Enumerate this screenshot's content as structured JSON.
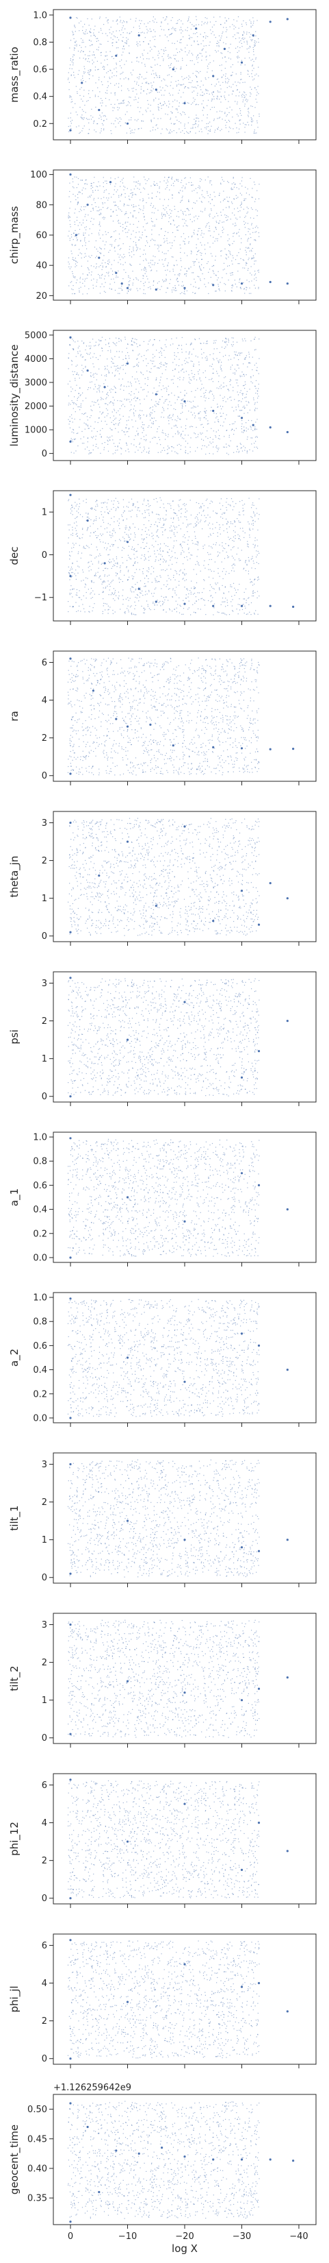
{
  "chart_data": [
    {
      "type": "scatter",
      "ylabel": "mass_ratio",
      "ylim": [
        0.08,
        1.04
      ],
      "yticks": [
        0.2,
        0.4,
        0.6,
        0.8,
        1.0
      ],
      "ytick_labels": [
        "0.2",
        "0.4",
        "0.6",
        "0.8",
        "1.0"
      ],
      "points": [
        [
          0,
          0.15
        ],
        [
          0,
          0.98
        ],
        [
          -2,
          0.5
        ],
        [
          -5,
          0.3
        ],
        [
          -8,
          0.7
        ],
        [
          -10,
          0.2
        ],
        [
          -12,
          0.85
        ],
        [
          -15,
          0.45
        ],
        [
          -18,
          0.6
        ],
        [
          -20,
          0.35
        ],
        [
          -22,
          0.9
        ],
        [
          -25,
          0.55
        ],
        [
          -27,
          0.75
        ],
        [
          -30,
          0.65
        ],
        [
          -32,
          0.85
        ],
        [
          -35,
          0.95
        ],
        [
          -38,
          0.97
        ]
      ]
    },
    {
      "type": "scatter",
      "ylabel": "chirp_mass",
      "ylim": [
        17,
        103
      ],
      "yticks": [
        20,
        40,
        60,
        80,
        100
      ],
      "ytick_labels": [
        "20",
        "40",
        "60",
        "80",
        "100"
      ],
      "points": [
        [
          0,
          100
        ],
        [
          -1,
          60
        ],
        [
          -3,
          80
        ],
        [
          -5,
          45
        ],
        [
          -7,
          95
        ],
        [
          -8,
          35
        ],
        [
          -9,
          28
        ],
        [
          -10,
          25
        ],
        [
          -15,
          24
        ],
        [
          -20,
          25
        ],
        [
          -25,
          27
        ],
        [
          -30,
          28
        ],
        [
          -35,
          29
        ],
        [
          -38,
          28
        ]
      ]
    },
    {
      "type": "scatter",
      "ylabel": "luminosity_distance",
      "ylim": [
        -300,
        5200
      ],
      "yticks": [
        0,
        1000,
        2000,
        3000,
        4000,
        5000
      ],
      "ytick_labels": [
        "0",
        "1000",
        "2000",
        "3000",
        "4000",
        "5000"
      ],
      "points": [
        [
          0,
          4900
        ],
        [
          0,
          500
        ],
        [
          -3,
          3500
        ],
        [
          -6,
          2800
        ],
        [
          -10,
          3800
        ],
        [
          -15,
          2500
        ],
        [
          -20,
          2200
        ],
        [
          -25,
          1800
        ],
        [
          -30,
          1500
        ],
        [
          -32,
          1200
        ],
        [
          -35,
          1100
        ],
        [
          -38,
          900
        ]
      ]
    },
    {
      "type": "scatter",
      "ylabel": "dec",
      "ylim": [
        -1.55,
        1.5
      ],
      "yticks": [
        -1,
        0,
        1
      ],
      "ytick_labels": [
        "−1",
        "0",
        "1"
      ],
      "points": [
        [
          0,
          1.4
        ],
        [
          0,
          -0.5
        ],
        [
          -3,
          0.8
        ],
        [
          -6,
          -0.2
        ],
        [
          -10,
          0.3
        ],
        [
          -12,
          -0.8
        ],
        [
          -15,
          -1.1
        ],
        [
          -20,
          -1.15
        ],
        [
          -25,
          -1.2
        ],
        [
          -30,
          -1.2
        ],
        [
          -35,
          -1.2
        ],
        [
          -39,
          -1.22
        ]
      ]
    },
    {
      "type": "scatter",
      "ylabel": "ra",
      "ylim": [
        -0.3,
        6.6
      ],
      "yticks": [
        0,
        2,
        4,
        6
      ],
      "ytick_labels": [
        "0",
        "2",
        "4",
        "6"
      ],
      "points": [
        [
          0,
          6.2
        ],
        [
          0,
          0.1
        ],
        [
          -4,
          4.5
        ],
        [
          -8,
          3.0
        ],
        [
          -10,
          2.6
        ],
        [
          -14,
          2.7
        ],
        [
          -18,
          1.6
        ],
        [
          -25,
          1.5
        ],
        [
          -30,
          1.45
        ],
        [
          -35,
          1.4
        ],
        [
          -39,
          1.42
        ]
      ]
    },
    {
      "type": "scatter",
      "ylabel": "theta_jn",
      "ylim": [
        -0.15,
        3.3
      ],
      "yticks": [
        0,
        1,
        2,
        3
      ],
      "ytick_labels": [
        "0",
        "1",
        "2",
        "3"
      ],
      "points": [
        [
          0,
          3.0
        ],
        [
          0,
          0.1
        ],
        [
          -5,
          1.6
        ],
        [
          -10,
          2.5
        ],
        [
          -15,
          0.8
        ],
        [
          -20,
          2.9
        ],
        [
          -25,
          0.4
        ],
        [
          -30,
          1.2
        ],
        [
          -33,
          0.3
        ],
        [
          -35,
          1.4
        ],
        [
          -38,
          1.0
        ]
      ]
    },
    {
      "type": "scatter",
      "ylabel": "psi",
      "ylim": [
        -0.15,
        3.3
      ],
      "yticks": [
        0,
        1,
        2,
        3
      ],
      "ytick_labels": [
        "0",
        "1",
        "2",
        "3"
      ],
      "points": [
        [
          0,
          0.0
        ],
        [
          0,
          3.14
        ],
        [
          -10,
          1.5
        ],
        [
          -20,
          2.5
        ],
        [
          -30,
          0.5
        ],
        [
          -33,
          1.2
        ],
        [
          -38,
          2.0
        ]
      ]
    },
    {
      "type": "scatter",
      "ylabel": "a_1",
      "ylim": [
        -0.04,
        1.04
      ],
      "yticks": [
        0.0,
        0.2,
        0.4,
        0.6,
        0.8,
        1.0
      ],
      "ytick_labels": [
        "0.0",
        "0.2",
        "0.4",
        "0.6",
        "0.8",
        "1.0"
      ],
      "points": [
        [
          0,
          0.0
        ],
        [
          0,
          0.99
        ],
        [
          -10,
          0.5
        ],
        [
          -20,
          0.3
        ],
        [
          -30,
          0.7
        ],
        [
          -33,
          0.6
        ],
        [
          -38,
          0.4
        ]
      ]
    },
    {
      "type": "scatter",
      "ylabel": "a_2",
      "ylim": [
        -0.04,
        1.04
      ],
      "yticks": [
        0.0,
        0.2,
        0.4,
        0.6,
        0.8,
        1.0
      ],
      "ytick_labels": [
        "0.0",
        "0.2",
        "0.4",
        "0.6",
        "0.8",
        "1.0"
      ],
      "points": [
        [
          0,
          0.0
        ],
        [
          0,
          0.99
        ],
        [
          -10,
          0.5
        ],
        [
          -20,
          0.3
        ],
        [
          -30,
          0.7
        ],
        [
          -33,
          0.6
        ],
        [
          -38,
          0.4
        ]
      ]
    },
    {
      "type": "scatter",
      "ylabel": "tilt_1",
      "ylim": [
        -0.15,
        3.3
      ],
      "yticks": [
        0,
        1,
        2,
        3
      ],
      "ytick_labels": [
        "0",
        "1",
        "2",
        "3"
      ],
      "points": [
        [
          0,
          3.0
        ],
        [
          0,
          0.1
        ],
        [
          -10,
          1.5
        ],
        [
          -20,
          1.0
        ],
        [
          -30,
          0.8
        ],
        [
          -33,
          0.7
        ],
        [
          -38,
          1.0
        ]
      ]
    },
    {
      "type": "scatter",
      "ylabel": "tilt_2",
      "ylim": [
        -0.15,
        3.3
      ],
      "yticks": [
        0,
        1,
        2,
        3
      ],
      "ytick_labels": [
        "0",
        "1",
        "2",
        "3"
      ],
      "points": [
        [
          0,
          3.0
        ],
        [
          0,
          0.1
        ],
        [
          -10,
          1.5
        ],
        [
          -20,
          1.2
        ],
        [
          -30,
          1.0
        ],
        [
          -33,
          1.3
        ],
        [
          -38,
          1.6
        ]
      ]
    },
    {
      "type": "scatter",
      "ylabel": "phi_12",
      "ylim": [
        -0.3,
        6.6
      ],
      "yticks": [
        0,
        2,
        4,
        6
      ],
      "ytick_labels": [
        "0",
        "2",
        "4",
        "6"
      ],
      "points": [
        [
          0,
          0.0
        ],
        [
          0,
          6.28
        ],
        [
          -10,
          3.0
        ],
        [
          -20,
          5.0
        ],
        [
          -30,
          1.5
        ],
        [
          -33,
          4.0
        ],
        [
          -38,
          2.5
        ]
      ]
    },
    {
      "type": "scatter",
      "ylabel": "phi_jl",
      "ylim": [
        -0.3,
        6.6
      ],
      "yticks": [
        0,
        2,
        4,
        6
      ],
      "ytick_labels": [
        "0",
        "2",
        "4",
        "6"
      ],
      "points": [
        [
          0,
          0.0
        ],
        [
          0,
          6.28
        ],
        [
          -10,
          3.0
        ],
        [
          -20,
          5.0
        ],
        [
          -30,
          3.8
        ],
        [
          -33,
          4.0
        ],
        [
          -38,
          2.5
        ]
      ]
    },
    {
      "type": "scatter",
      "ylabel": "geocent_time",
      "xlabel": "log X",
      "offset_text": "+1.126259642e9",
      "ylim": [
        0.305,
        0.525
      ],
      "yticks": [
        0.35,
        0.4,
        0.45,
        0.5
      ],
      "ytick_labels": [
        "0.35",
        "0.40",
        "0.45",
        "0.50"
      ],
      "points": [
        [
          0,
          0.51
        ],
        [
          0,
          0.31
        ],
        [
          -3,
          0.47
        ],
        [
          -5,
          0.36
        ],
        [
          -8,
          0.43
        ],
        [
          -12,
          0.425
        ],
        [
          -16,
          0.435
        ],
        [
          -20,
          0.42
        ],
        [
          -25,
          0.415
        ],
        [
          -30,
          0.415
        ],
        [
          -35,
          0.415
        ],
        [
          -39,
          0.413
        ]
      ]
    }
  ],
  "x_axis": {
    "xlim": [
      3,
      -43
    ],
    "xticks": [
      0,
      -10,
      -20,
      -30,
      -40
    ],
    "xtick_labels": [
      "0",
      "−10",
      "−20",
      "−30",
      "−40"
    ]
  },
  "colors": {
    "points": "#4c72b0",
    "axis": "#262626"
  }
}
